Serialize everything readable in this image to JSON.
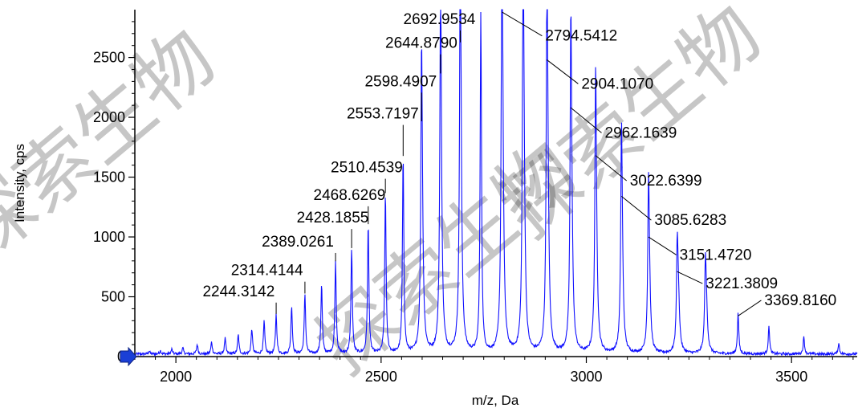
{
  "watermark": "探索生物",
  "chart_data": {
    "type": "line",
    "xlabel": "m/z, Da",
    "ylabel": "Intensity, cps",
    "xlim": [
      1900,
      3660
    ],
    "ylim": [
      0,
      2900
    ],
    "x_ticks": [
      2000,
      2500,
      3000,
      3500
    ],
    "y_ticks": [
      0,
      500,
      1000,
      1500,
      2000,
      2500
    ],
    "series_color": "#1010ff",
    "peaks": [
      {
        "mz": 1935,
        "h": 25
      },
      {
        "mz": 1962,
        "h": 30
      },
      {
        "mz": 1990,
        "h": 40
      },
      {
        "mz": 2017,
        "h": 50
      },
      {
        "mz": 2052,
        "h": 80
      },
      {
        "mz": 2087,
        "h": 100
      },
      {
        "mz": 2120,
        "h": 130
      },
      {
        "mz": 2152,
        "h": 160
      },
      {
        "mz": 2185,
        "h": 210
      },
      {
        "mz": 2215,
        "h": 270
      },
      {
        "mz": 2244.3,
        "h": 330
      },
      {
        "mz": 2282,
        "h": 400
      },
      {
        "mz": 2314.4,
        "h": 500
      },
      {
        "mz": 2355,
        "h": 580
      },
      {
        "mz": 2389.0,
        "h": 770
      },
      {
        "mz": 2428.2,
        "h": 880
      },
      {
        "mz": 2468.6,
        "h": 1080
      },
      {
        "mz": 2510.5,
        "h": 1340
      },
      {
        "mz": 2553.7,
        "h": 1650
      },
      {
        "mz": 2598.5,
        "h": 1940
      },
      {
        "mz": 2644.9,
        "h": 2340
      },
      {
        "mz": 2693.0,
        "h": 2600
      },
      {
        "mz": 2743,
        "h": 2840
      },
      {
        "mz": 2794.5,
        "h": 2880
      },
      {
        "mz": 2846,
        "h": 2770
      },
      {
        "mz": 2904.1,
        "h": 2480
      },
      {
        "mz": 2962.2,
        "h": 2080
      },
      {
        "mz": 3022.6,
        "h": 1680
      },
      {
        "mz": 3085.6,
        "h": 1340
      },
      {
        "mz": 3151.5,
        "h": 1000
      },
      {
        "mz": 3221.4,
        "h": 710
      },
      {
        "mz": 3290,
        "h": 510
      },
      {
        "mz": 3369.8,
        "h": 340
      },
      {
        "mz": 3445,
        "h": 230
      },
      {
        "mz": 3530,
        "h": 140
      },
      {
        "mz": 3615,
        "h": 90
      }
    ],
    "side_peaks": [
      {
        "mz": 2600,
        "h": 810
      },
      {
        "mz": 2646,
        "h": 930
      },
      {
        "mz": 2694,
        "h": 1080
      },
      {
        "mz": 2796,
        "h": 1180
      },
      {
        "mz": 2848,
        "h": 1120
      },
      {
        "mz": 2906,
        "h": 1130
      },
      {
        "mz": 2964,
        "h": 1020
      },
      {
        "mz": 3024,
        "h": 830
      },
      {
        "mz": 3087,
        "h": 690
      },
      {
        "mz": 3153,
        "h": 610
      },
      {
        "mz": 3224,
        "h": 480
      },
      {
        "mz": 3292,
        "h": 420
      }
    ],
    "annotations": [
      {
        "label": "2244.3142",
        "mz": 2244.3142,
        "y": 330,
        "tx": 2153,
        "ty": 505,
        "side": "above"
      },
      {
        "label": "2314.4144",
        "mz": 2314.4144,
        "y": 500,
        "tx": 2222,
        "ty": 680,
        "side": "above"
      },
      {
        "label": "2389.0261",
        "mz": 2389.0261,
        "y": 770,
        "tx": 2297,
        "ty": 920,
        "side": "above"
      },
      {
        "label": "2428.1855",
        "mz": 2428.1855,
        "y": 880,
        "tx": 2382,
        "ty": 1120,
        "side": "above"
      },
      {
        "label": "2468.6269",
        "mz": 2468.6269,
        "y": 1080,
        "tx": 2423,
        "ty": 1310,
        "side": "above"
      },
      {
        "label": "2510.4539",
        "mz": 2510.4539,
        "y": 1340,
        "tx": 2465,
        "ty": 1540,
        "side": "above"
      },
      {
        "label": "2553.7197",
        "mz": 2553.7197,
        "y": 1650,
        "tx": 2504,
        "ty": 1990,
        "side": "above"
      },
      {
        "label": "2598.4907",
        "mz": 2598.4907,
        "y": 1940,
        "tx": 2548,
        "ty": 2260,
        "side": "above"
      },
      {
        "label": "2644.8790",
        "mz": 2644.879,
        "y": 2340,
        "tx": 2598,
        "ty": 2580,
        "side": "above"
      },
      {
        "label": "2692.9534",
        "mz": 2692.9534,
        "y": 2600,
        "tx": 2642,
        "ty": 2780,
        "side": "above"
      },
      {
        "label": "2794.5412",
        "mz": 2794.5412,
        "y": 2880,
        "tx": 2900,
        "ty": 2640,
        "side": "right"
      },
      {
        "label": "2904.1070",
        "mz": 2904.107,
        "y": 2480,
        "tx": 2988,
        "ty": 2240,
        "side": "right"
      },
      {
        "label": "2962.1639",
        "mz": 2962.1639,
        "y": 2080,
        "tx": 3045,
        "ty": 1830,
        "side": "right"
      },
      {
        "label": "3022.6399",
        "mz": 3022.6399,
        "y": 1680,
        "tx": 3106,
        "ty": 1430,
        "side": "right"
      },
      {
        "label": "3085.6283",
        "mz": 3085.6283,
        "y": 1340,
        "tx": 3166,
        "ty": 1100,
        "side": "right"
      },
      {
        "label": "3151.4720",
        "mz": 3151.472,
        "y": 1000,
        "tx": 3227,
        "ty": 810,
        "side": "right"
      },
      {
        "label": "3221.3809",
        "mz": 3221.3809,
        "y": 710,
        "tx": 3291,
        "ty": 570,
        "side": "right"
      },
      {
        "label": "3369.8160",
        "mz": 3369.816,
        "y": 340,
        "tx": 3434,
        "ty": 430,
        "side": "right"
      }
    ]
  }
}
